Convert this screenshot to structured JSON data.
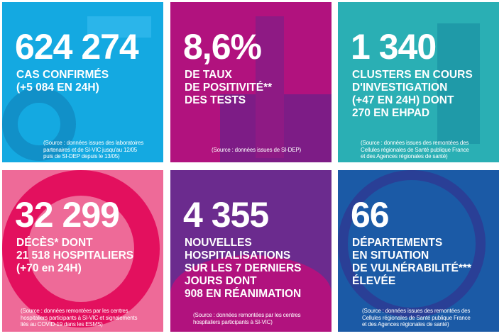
{
  "panels": [
    {
      "value": "624 274",
      "label": [
        "CAS CONFIRMÉS",
        "(+5 084 EN 24H)"
      ],
      "source": [
        "(Source : données issues des laboratoires",
        "partenaires et de SI-VIC jusqu'au 12/05",
        "puis de SI-DEP depuis le 13/05)"
      ],
      "color": "#14a9e1"
    },
    {
      "value": "8,6%",
      "label": [
        "DE TAUX",
        "DE POSITIVITÉ**",
        "DES TESTS"
      ],
      "source": [
        "(Source : données issues de SI-DEP)"
      ],
      "color": "#b1127e"
    },
    {
      "value": "1 340",
      "label": [
        "CLUSTERS EN COURS",
        "D'INVESTIGATION",
        "(+47 EN 24H) DONT",
        "270 EN EHPAD"
      ],
      "source": [
        "(Source : données issues des remontées des",
        "Cellules régionales de Santé publique France",
        "et des Agences régionales de santé)"
      ],
      "color": "#2aafb4"
    },
    {
      "value": "32 299",
      "label": [
        "DÉCÈS* DONT",
        "21 518 HOSPITALIERS",
        "(+70 en 24H)"
      ],
      "source": [
        "(Source : données remontées par les centres",
        "hospitaliers participants à SI-VIC et signalements",
        "liés au COVID-19 dans les ESMS)"
      ],
      "color": "#e8457f"
    },
    {
      "value": "4 355",
      "label": [
        "NOUVELLES",
        "HOSPITALISATIONS",
        "SUR LES 7 DERNIERS",
        "JOURS DONT",
        "908 EN RÉANIMATION"
      ],
      "source": [
        "(Source : données remontées par les centres",
        "hospitaliers participants à SI-VIC)"
      ],
      "color": "#6b2b8e"
    },
    {
      "value": "66",
      "label": [
        "DÉPARTEMENTS",
        "EN SITUATION",
        "DE VULNÉRABILITÉ***",
        "ÉLEVÉE"
      ],
      "source": [
        "(Source : données issues des remontées des",
        "Cellules régionales de Santé publique France",
        "et des Agences régionales de santé)"
      ],
      "color": "#1b5aa6"
    }
  ]
}
